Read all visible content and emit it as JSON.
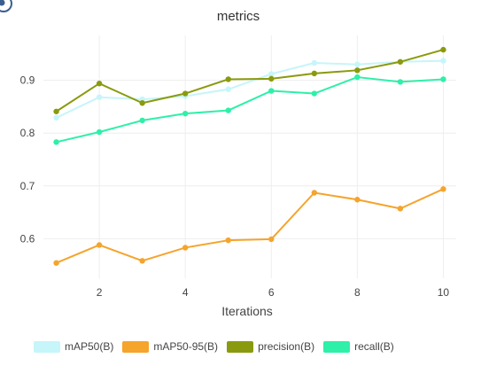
{
  "chart_data": {
    "type": "line",
    "title": "metrics",
    "xlabel": "Iterations",
    "ylabel": "",
    "x": [
      1,
      2,
      3,
      4,
      5,
      6,
      7,
      8,
      9,
      10
    ],
    "xlim": [
      0.7,
      10.3
    ],
    "ylim": [
      0.525,
      0.985
    ],
    "xticks": [
      2,
      4,
      6,
      8,
      10
    ],
    "yticks": [
      0.6,
      0.7,
      0.8,
      0.9
    ],
    "ytick_labels": [
      "0.6",
      "0.7",
      "0.8",
      "0.9"
    ],
    "grid": true,
    "legend_position": "bottom",
    "series": [
      {
        "name": "mAP50(B)",
        "color": "#c6f5fa",
        "values": [
          0.829,
          0.868,
          0.864,
          0.87,
          0.883,
          0.912,
          0.933,
          0.93,
          0.935,
          0.937
        ]
      },
      {
        "name": "mAP50-95(B)",
        "color": "#f5a42c",
        "values": [
          0.554,
          0.588,
          0.558,
          0.583,
          0.597,
          0.599,
          0.687,
          0.674,
          0.657,
          0.694
        ]
      },
      {
        "name": "precision(B)",
        "color": "#8a9a0e",
        "values": [
          0.841,
          0.894,
          0.857,
          0.875,
          0.902,
          0.903,
          0.913,
          0.919,
          0.935,
          0.958
        ]
      },
      {
        "name": "recall(B)",
        "color": "#2ef0a8",
        "values": [
          0.783,
          0.802,
          0.824,
          0.837,
          0.843,
          0.88,
          0.875,
          0.906,
          0.897,
          0.902
        ]
      }
    ]
  },
  "icons": {
    "corner": "eye-icon"
  }
}
